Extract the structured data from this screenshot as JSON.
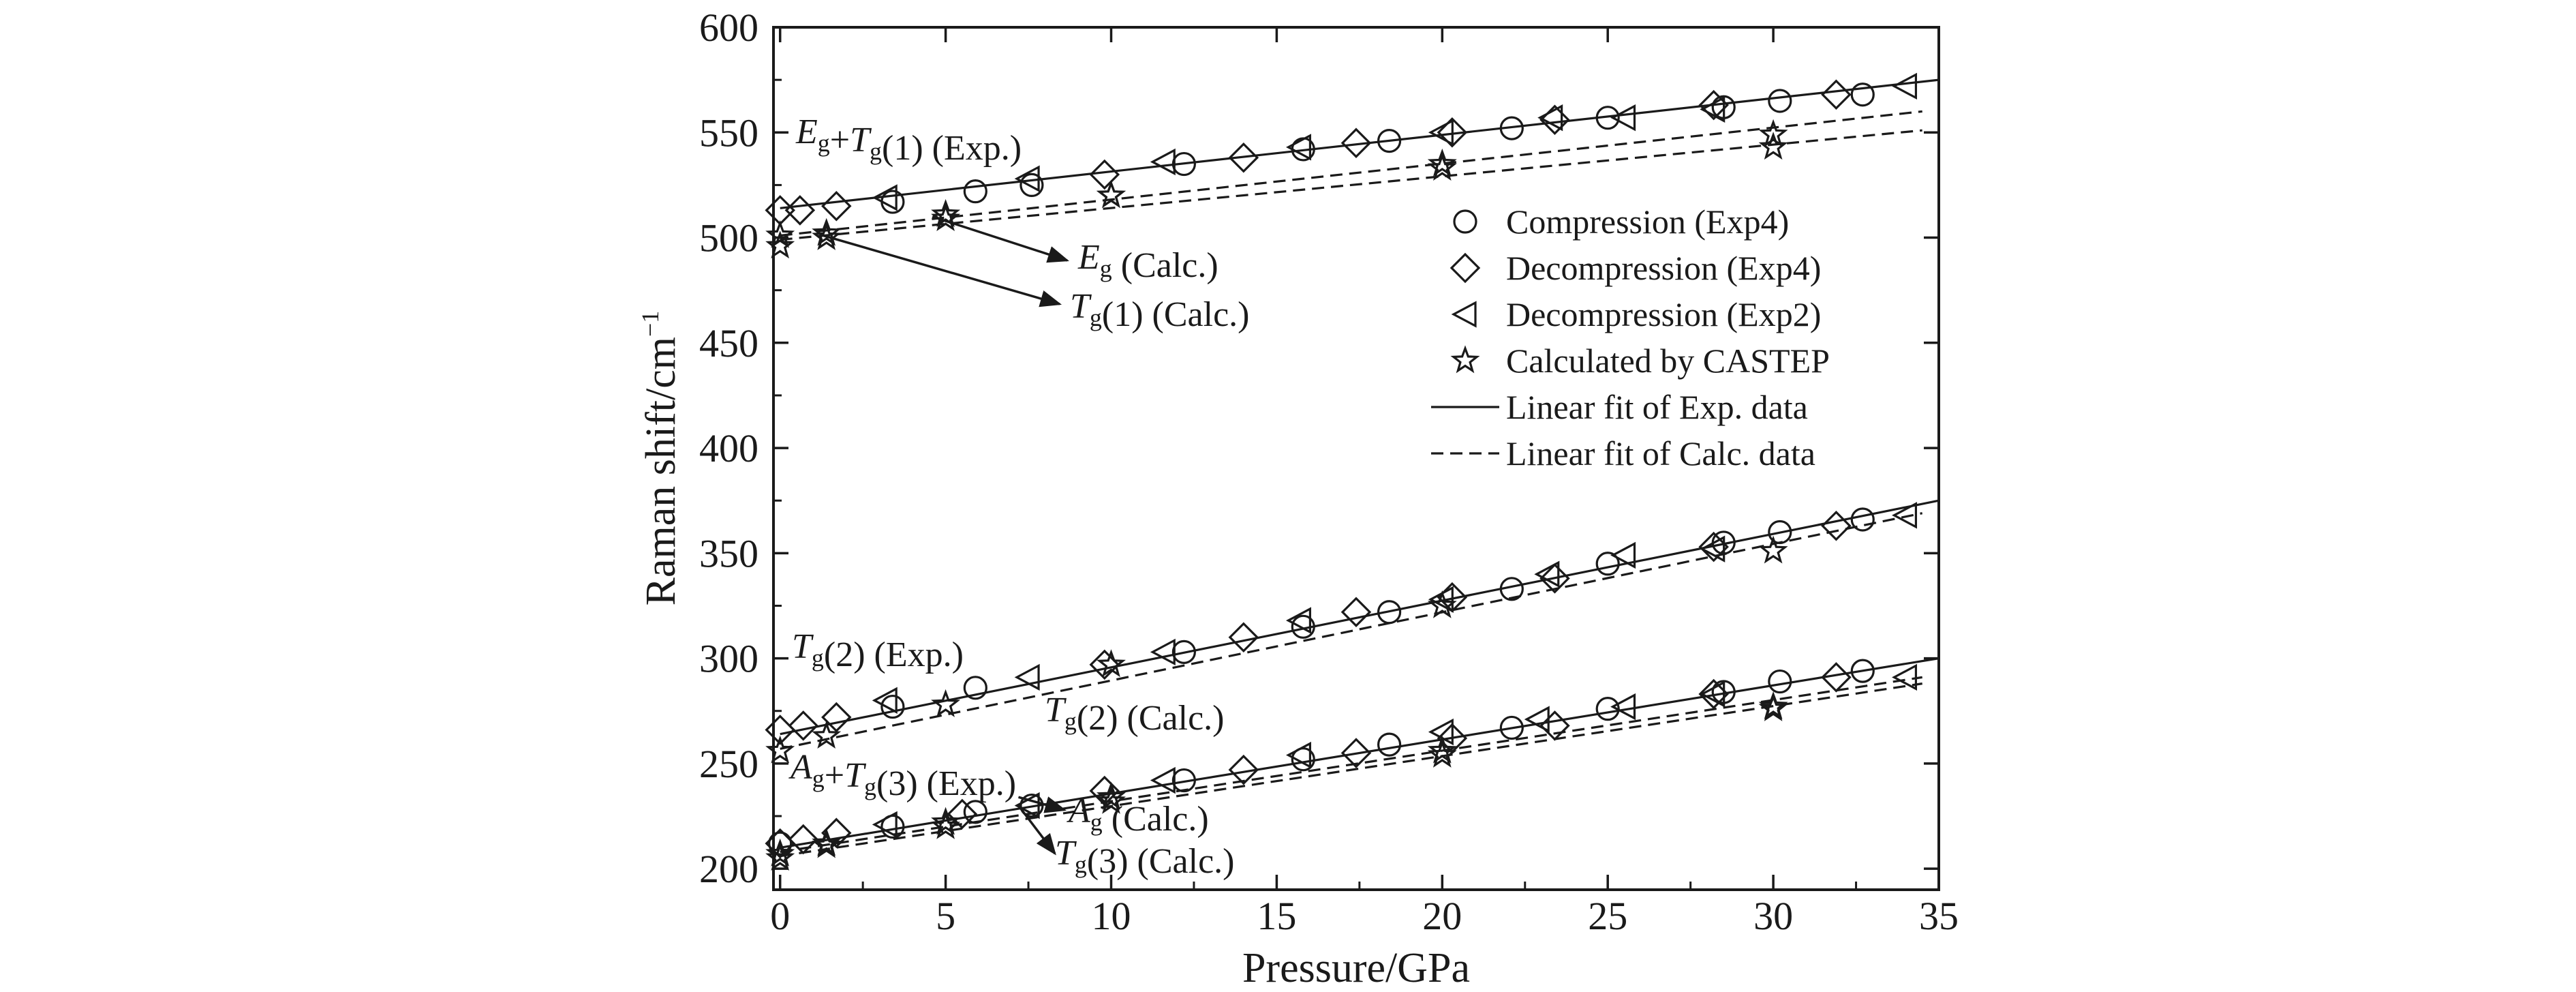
{
  "chart_data": {
    "type": "scatter",
    "xlabel": "Pressure/GPa",
    "ylabel": "Raman shift/cm",
    "ylabel_sup": "−1",
    "xlim": [
      -0.2,
      35
    ],
    "ylim": [
      190,
      600
    ],
    "xticks": [
      0,
      5,
      10,
      15,
      20,
      25,
      30,
      35
    ],
    "yticks": [
      200,
      250,
      300,
      350,
      400,
      450,
      500,
      550,
      600
    ],
    "xtick_labels": [
      "0",
      "5",
      "10",
      "15",
      "20",
      "25",
      "30",
      "35"
    ],
    "ytick_labels": [
      "200",
      "250",
      "300",
      "350",
      "400",
      "450",
      "500",
      "550",
      "600"
    ],
    "legend": {
      "position": "right",
      "entries": [
        {
          "label": "Compression (Exp4)",
          "marker": "circle"
        },
        {
          "label": "Decompression (Exp4)",
          "marker": "diamond"
        },
        {
          "label": "Decompression (Exp2)",
          "marker": "triangle-left"
        },
        {
          "label": "Calculated by CASTEP",
          "marker": "star"
        },
        {
          "label": "Linear fit of Exp. data",
          "marker": "solid-line"
        },
        {
          "label": "Linear fit of Calc. data",
          "marker": "dashed-line"
        }
      ]
    },
    "series": [
      {
        "name": "Compression (Exp4)",
        "marker": "circle",
        "points": [
          [
            3.4,
            517
          ],
          [
            5.9,
            522
          ],
          [
            7.6,
            525
          ],
          [
            12.2,
            535
          ],
          [
            15.8,
            542
          ],
          [
            18.4,
            546
          ],
          [
            22.1,
            552
          ],
          [
            25,
            557
          ],
          [
            28.5,
            562
          ],
          [
            30.2,
            565
          ],
          [
            32.7,
            568
          ],
          [
            3.4,
            277
          ],
          [
            5.9,
            286
          ],
          [
            12.2,
            303
          ],
          [
            15.8,
            315
          ],
          [
            18.4,
            322
          ],
          [
            22.1,
            333
          ],
          [
            25,
            345
          ],
          [
            28.5,
            355
          ],
          [
            30.2,
            360
          ],
          [
            32.7,
            366
          ],
          [
            0,
            212
          ],
          [
            3.4,
            220
          ],
          [
            5.9,
            227
          ],
          [
            7.6,
            230
          ],
          [
            12.2,
            242
          ],
          [
            15.8,
            252
          ],
          [
            18.4,
            259
          ],
          [
            22.1,
            267
          ],
          [
            25,
            276
          ],
          [
            28.5,
            284
          ],
          [
            30.2,
            289
          ],
          [
            32.7,
            294
          ]
        ]
      },
      {
        "name": "Decompression (Exp4)",
        "marker": "diamond",
        "points": [
          [
            0,
            513
          ],
          [
            0.6,
            513
          ],
          [
            1.7,
            515
          ],
          [
            9.8,
            530
          ],
          [
            14,
            538
          ],
          [
            17.4,
            545
          ],
          [
            20.3,
            550
          ],
          [
            23.4,
            556
          ],
          [
            28.2,
            563
          ],
          [
            31.9,
            568
          ],
          [
            0,
            266
          ],
          [
            0.7,
            268
          ],
          [
            1.7,
            272
          ],
          [
            9.8,
            297
          ],
          [
            14,
            310
          ],
          [
            17.4,
            322
          ],
          [
            20.3,
            329
          ],
          [
            23.4,
            338
          ],
          [
            28.2,
            353
          ],
          [
            31.9,
            363
          ],
          [
            0,
            212
          ],
          [
            0.7,
            214
          ],
          [
            1.7,
            217
          ],
          [
            5.5,
            226
          ],
          [
            9.8,
            237
          ],
          [
            14,
            247
          ],
          [
            17.4,
            255
          ],
          [
            20.3,
            262
          ],
          [
            23.4,
            268
          ],
          [
            28.2,
            283
          ],
          [
            31.9,
            291
          ]
        ]
      },
      {
        "name": "Decompression (Exp2)",
        "marker": "triangle-left",
        "points": [
          [
            3.2,
            519
          ],
          [
            7.5,
            528
          ],
          [
            11.6,
            536
          ],
          [
            15.7,
            543
          ],
          [
            20,
            550
          ],
          [
            23.3,
            557
          ],
          [
            25.5,
            557
          ],
          [
            28.2,
            561
          ],
          [
            34,
            572
          ],
          [
            3.2,
            280
          ],
          [
            7.5,
            291
          ],
          [
            11.6,
            303
          ],
          [
            15.7,
            318
          ],
          [
            20,
            328
          ],
          [
            23.2,
            340
          ],
          [
            25.5,
            349
          ],
          [
            28.2,
            352
          ],
          [
            34,
            368
          ],
          [
            3.2,
            221
          ],
          [
            7.5,
            230
          ],
          [
            11.6,
            242
          ],
          [
            15.7,
            254
          ],
          [
            20,
            265
          ],
          [
            22.9,
            271
          ],
          [
            25.5,
            277
          ],
          [
            28.2,
            283
          ],
          [
            34,
            291
          ]
        ]
      },
      {
        "name": "Calculated by CASTEP",
        "marker": "star",
        "points": [
          [
            0,
            496
          ],
          [
            0,
            501
          ],
          [
            1.4,
            500
          ],
          [
            1.4,
            502
          ],
          [
            5,
            509
          ],
          [
            5,
            511
          ],
          [
            10,
            520
          ],
          [
            10,
            520
          ],
          [
            20,
            533
          ],
          [
            20,
            535
          ],
          [
            30,
            543
          ],
          [
            30,
            549
          ],
          [
            0,
            256
          ],
          [
            1.4,
            263
          ],
          [
            5,
            278
          ],
          [
            10,
            297
          ],
          [
            20,
            325
          ],
          [
            30,
            351
          ],
          [
            0,
            205
          ],
          [
            0,
            207
          ],
          [
            1.4,
            211
          ],
          [
            1.4,
            212
          ],
          [
            5,
            220
          ],
          [
            5,
            222
          ],
          [
            10,
            232
          ],
          [
            10,
            234
          ],
          [
            20,
            254
          ],
          [
            20,
            256
          ],
          [
            30,
            276
          ],
          [
            30,
            277
          ]
        ]
      },
      {
        "name": "Linear fit of Exp. data",
        "style": "solid",
        "lines": [
          {
            "from": [
              0,
              514
            ],
            "to": [
              35,
              575
            ]
          },
          {
            "from": [
              0,
              264
            ],
            "to": [
              35,
              375
            ]
          },
          {
            "from": [
              0,
              210
            ],
            "to": [
              35,
              300
            ]
          }
        ]
      },
      {
        "name": "Linear fit of Calc. data",
        "style": "dashed",
        "lines": [
          {
            "from": [
              0,
              501
            ],
            "to": [
              34.5,
              560
            ]
          },
          {
            "from": [
              0,
              499
            ],
            "to": [
              34.5,
              551
            ]
          },
          {
            "from": [
              0,
              257
            ],
            "to": [
              34.5,
              369
            ]
          },
          {
            "from": [
              0,
              208
            ],
            "to": [
              34.5,
              291
            ]
          },
          {
            "from": [
              0,
              206
            ],
            "to": [
              34.5,
              288
            ]
          }
        ]
      }
    ],
    "annotations": [
      {
        "id": "eg-tg1-exp",
        "parts": [
          [
            "E",
            "g"
          ],
          [
            "+T",
            "g"
          ],
          [
            "(1) (Exp.)",
            ""
          ]
        ]
      },
      {
        "id": "eg-calc",
        "parts": [
          [
            "E",
            "g"
          ],
          [
            " (Calc.)",
            ""
          ]
        ]
      },
      {
        "id": "tg1-calc",
        "parts": [
          [
            "T",
            "g"
          ],
          [
            "(1) (Calc.)",
            ""
          ]
        ]
      },
      {
        "id": "tg2-exp",
        "parts": [
          [
            "T",
            "g"
          ],
          [
            "(2) (Exp.)",
            ""
          ]
        ]
      },
      {
        "id": "tg2-calc",
        "parts": [
          [
            "T",
            "g"
          ],
          [
            "(2) (Calc.)",
            ""
          ]
        ]
      },
      {
        "id": "ag-tg3-exp",
        "parts": [
          [
            "A",
            "g"
          ],
          [
            "+T",
            "g"
          ],
          [
            "(3) (Exp.)",
            ""
          ]
        ]
      },
      {
        "id": "ag-calc",
        "parts": [
          [
            "A",
            "g"
          ],
          [
            " (Calc.)",
            ""
          ]
        ]
      },
      {
        "id": "tg3-calc",
        "parts": [
          [
            "T",
            "g"
          ],
          [
            "(3) (Calc.)",
            ""
          ]
        ]
      }
    ]
  }
}
